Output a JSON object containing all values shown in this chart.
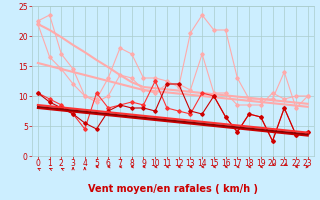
{
  "x": [
    0,
    1,
    2,
    3,
    4,
    5,
    6,
    7,
    8,
    9,
    10,
    11,
    12,
    13,
    14,
    15,
    16,
    17,
    18,
    19,
    20,
    21,
    22,
    23
  ],
  "series": [
    {
      "name": "rafales_light1",
      "color": "#ffaaaa",
      "linewidth": 0.8,
      "marker": "D",
      "markersize": 1.8,
      "values": [
        22.5,
        23.5,
        17.0,
        14.5,
        10.0,
        9.5,
        13.0,
        18.0,
        17.0,
        13.0,
        13.0,
        12.5,
        11.5,
        20.5,
        23.5,
        21.0,
        21.0,
        13.0,
        9.5,
        9.5,
        9.5,
        14.0,
        8.0,
        10.0
      ]
    },
    {
      "name": "moyen_light2",
      "color": "#ffaaaa",
      "linewidth": 0.8,
      "marker": "D",
      "markersize": 1.8,
      "values": [
        22.0,
        16.5,
        14.5,
        12.0,
        10.0,
        9.0,
        10.0,
        13.5,
        13.0,
        11.0,
        10.5,
        12.0,
        12.0,
        11.0,
        17.0,
        10.5,
        10.5,
        8.5,
        8.5,
        8.5,
        10.5,
        9.5,
        10.0,
        10.0
      ]
    },
    {
      "name": "trend_light1",
      "color": "#ffaaaa",
      "linewidth": 1.5,
      "marker": "None",
      "markersize": 0,
      "values": [
        22.0,
        21.0,
        19.8,
        18.5,
        17.3,
        16.0,
        14.8,
        13.5,
        12.3,
        11.5,
        11.3,
        11.1,
        10.9,
        10.7,
        10.5,
        10.3,
        10.1,
        9.9,
        9.7,
        9.5,
        9.3,
        9.1,
        8.9,
        8.7
      ]
    },
    {
      "name": "trend_light2",
      "color": "#ffaaaa",
      "linewidth": 1.5,
      "marker": "None",
      "markersize": 0,
      "values": [
        15.5,
        15.0,
        14.5,
        14.0,
        13.5,
        13.0,
        12.5,
        12.0,
        11.5,
        11.0,
        10.8,
        10.6,
        10.4,
        10.2,
        10.0,
        9.8,
        9.6,
        9.4,
        9.2,
        9.0,
        8.8,
        8.6,
        8.4,
        8.2
      ]
    },
    {
      "name": "moyen_red1",
      "color": "#ff3333",
      "linewidth": 0.8,
      "marker": "D",
      "markersize": 1.8,
      "values": [
        10.5,
        9.5,
        8.5,
        7.0,
        4.5,
        10.5,
        8.0,
        8.5,
        9.0,
        8.5,
        12.5,
        8.0,
        7.5,
        7.0,
        10.5,
        10.0,
        6.5,
        4.0,
        7.0,
        6.5,
        2.5,
        8.0,
        3.5,
        4.0
      ]
    },
    {
      "name": "moyen_red2",
      "color": "#cc0000",
      "linewidth": 0.8,
      "marker": "D",
      "markersize": 1.8,
      "values": [
        10.5,
        9.0,
        8.0,
        7.0,
        5.5,
        4.5,
        7.5,
        8.5,
        8.0,
        8.0,
        7.5,
        12.0,
        12.0,
        7.5,
        7.0,
        10.0,
        6.5,
        4.0,
        7.0,
        6.5,
        2.5,
        8.0,
        3.5,
        4.0
      ]
    },
    {
      "name": "trend_red1",
      "color": "#ff3333",
      "linewidth": 1.5,
      "marker": "None",
      "markersize": 0,
      "values": [
        8.5,
        8.3,
        8.1,
        7.9,
        7.7,
        7.5,
        7.3,
        7.1,
        6.9,
        6.7,
        6.5,
        6.3,
        6.1,
        5.9,
        5.7,
        5.5,
        5.3,
        5.1,
        4.9,
        4.7,
        4.5,
        4.3,
        4.1,
        3.9
      ]
    },
    {
      "name": "trend_red2",
      "color": "#cc0000",
      "linewidth": 1.5,
      "marker": "None",
      "markersize": 0,
      "values": [
        8.0,
        7.8,
        7.6,
        7.4,
        7.2,
        7.0,
        6.8,
        6.6,
        6.4,
        6.2,
        6.0,
        5.8,
        5.6,
        5.4,
        5.2,
        5.0,
        4.8,
        4.6,
        4.4,
        4.2,
        4.0,
        3.8,
        3.6,
        3.4
      ]
    },
    {
      "name": "trend_darkred",
      "color": "#880000",
      "linewidth": 1.2,
      "marker": "None",
      "markersize": 0,
      "values": [
        8.2,
        8.0,
        7.8,
        7.6,
        7.4,
        7.2,
        7.0,
        6.8,
        6.6,
        6.4,
        6.2,
        6.0,
        5.8,
        5.6,
        5.4,
        5.2,
        5.0,
        4.8,
        4.6,
        4.4,
        4.2,
        4.0,
        3.8,
        3.6
      ]
    }
  ],
  "xlabel": "Vent moyen/en rafales ( km/h )",
  "xlim": [
    -0.5,
    23.5
  ],
  "ylim": [
    0,
    25
  ],
  "yticks": [
    0,
    5,
    10,
    15,
    20,
    25
  ],
  "xticks": [
    0,
    1,
    2,
    3,
    4,
    5,
    6,
    7,
    8,
    9,
    10,
    11,
    12,
    13,
    14,
    15,
    16,
    17,
    18,
    19,
    20,
    21,
    22,
    23
  ],
  "bg_color": "#cceeff",
  "grid_color": "#aacccc",
  "tick_color": "#cc0000",
  "xlabel_color": "#cc0000",
  "xlabel_fontsize": 7,
  "tick_fontsize": 5.5,
  "arrow_angles": [
    225,
    225,
    225,
    180,
    180,
    270,
    270,
    270,
    270,
    270,
    270,
    270,
    270,
    270,
    270,
    270,
    270,
    270,
    270,
    270,
    315,
    315,
    270,
    90
  ]
}
